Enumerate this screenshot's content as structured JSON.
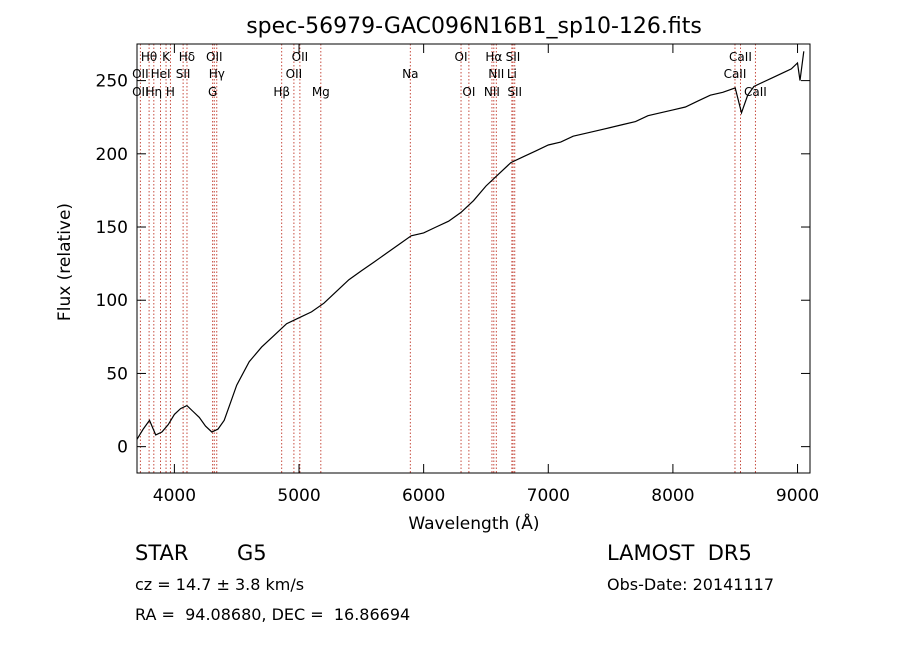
{
  "chart_data": {
    "type": "line",
    "title": "spec-56979-GAC096N16B1_sp10-126.fits",
    "xlabel": "Wavelength (Å)",
    "ylabel": "Flux (relative)",
    "xlim": [
      3700,
      9100
    ],
    "ylim": [
      -18,
      275
    ],
    "xticks": [
      4000,
      5000,
      6000,
      7000,
      8000,
      9000
    ],
    "yticks": [
      0,
      50,
      100,
      150,
      200,
      250
    ],
    "grid": false,
    "series": [
      {
        "x": [
          3700,
          3750,
          3800,
          3850,
          3900,
          3950,
          4000,
          4050,
          4100,
          4150,
          4200,
          4250,
          4300,
          4350,
          4400,
          4450,
          4500,
          4600,
          4700,
          4800,
          4900,
          5000,
          5100,
          5200,
          5300,
          5400,
          5500,
          5600,
          5700,
          5800,
          5900,
          6000,
          6100,
          6200,
          6300,
          6400,
          6500,
          6600,
          6700,
          6800,
          6900,
          7000,
          7100,
          7200,
          7300,
          7400,
          7500,
          7600,
          7700,
          7800,
          7900,
          8000,
          8100,
          8200,
          8300,
          8400,
          8500,
          8550,
          8600,
          8650,
          8700,
          8800,
          8900,
          8950,
          9000,
          9020,
          9050
        ],
        "y": [
          5,
          12,
          18,
          8,
          10,
          15,
          22,
          26,
          28,
          24,
          20,
          14,
          10,
          12,
          18,
          30,
          42,
          58,
          68,
          76,
          84,
          88,
          92,
          98,
          106,
          114,
          120,
          126,
          132,
          138,
          144,
          146,
          150,
          154,
          160,
          168,
          178,
          186,
          194,
          198,
          202,
          206,
          208,
          212,
          214,
          216,
          218,
          220,
          222,
          226,
          228,
          230,
          232,
          236,
          240,
          242,
          245,
          228,
          240,
          246,
          248,
          252,
          256,
          258,
          262,
          250,
          270
        ]
      }
    ],
    "lines": [
      {
        "name": "Hθ",
        "x": 3797,
        "row": 1
      },
      {
        "name": "K",
        "x": 3933,
        "row": 1
      },
      {
        "name": "Hδ",
        "x": 4101,
        "row": 1
      },
      {
        "name": "OII",
        "x": 4320,
        "row": 1
      },
      {
        "name": "OII",
        "x": 5007,
        "row": 1
      },
      {
        "name": "OI",
        "x": 6300,
        "row": 1
      },
      {
        "name": "Hα",
        "x": 6563,
        "row": 1
      },
      {
        "name": "SII",
        "x": 6717,
        "row": 1
      },
      {
        "name": "CaII",
        "x": 8542,
        "row": 1
      },
      {
        "name": "OII",
        "x": 3727,
        "row": 2
      },
      {
        "name": "HeI",
        "x": 3889,
        "row": 2
      },
      {
        "name": "SII",
        "x": 4070,
        "row": 2
      },
      {
        "name": "Hγ",
        "x": 4340,
        "row": 2
      },
      {
        "name": "OII",
        "x": 4959,
        "row": 2
      },
      {
        "name": "Na",
        "x": 5893,
        "row": 2
      },
      {
        "name": "NII",
        "x": 6583,
        "row": 2
      },
      {
        "name": "Li",
        "x": 6708,
        "row": 2
      },
      {
        "name": "CaII",
        "x": 8498,
        "row": 2
      },
      {
        "name": "OII",
        "x": 3727,
        "row": 3
      },
      {
        "name": "Hη",
        "x": 3835,
        "row": 3
      },
      {
        "name": "H",
        "x": 3968,
        "row": 3
      },
      {
        "name": "G",
        "x": 4307,
        "row": 3
      },
      {
        "name": "Hβ",
        "x": 4861,
        "row": 3
      },
      {
        "name": "Mg",
        "x": 5175,
        "row": 3
      },
      {
        "name": "OI",
        "x": 6363,
        "row": 3
      },
      {
        "name": "NII",
        "x": 6548,
        "row": 3
      },
      {
        "name": "SII",
        "x": 6731,
        "row": 3
      },
      {
        "name": "CaII",
        "x": 8662,
        "row": 3
      }
    ]
  },
  "info": {
    "class": "STAR",
    "subclass": "G5",
    "survey": "LAMOST  DR5",
    "cz": "cz = 14.7 ± 3.8 km/s",
    "obs_date": "Obs-Date: 20141117",
    "radec": "RA =  94.08680, DEC =  16.86694"
  }
}
